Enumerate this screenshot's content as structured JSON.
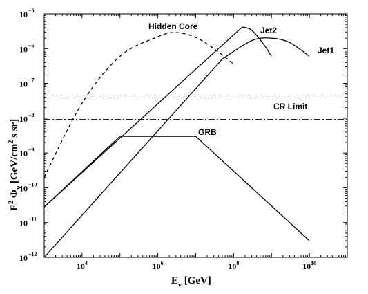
{
  "chart_data": {
    "type": "line",
    "x_scale": "log",
    "y_scale": "log",
    "xlim": [
      1000,
      100000000000.0
    ],
    "ylim": [
      1e-12,
      1e-05
    ],
    "grid": false,
    "legend": "none",
    "xlabel": {
      "main": "E",
      "sub": "ν",
      "unit": " [GeV]"
    },
    "ylabel": {
      "pre": "E",
      "pre_sup": "2",
      "phi": " Φ",
      "sub": "ν",
      "unit_a": "  [GeV/cm",
      "unit_sup": "2",
      "unit_b": " s sr]"
    },
    "x_ticks": [
      {
        "value": 10000,
        "base": "10",
        "exp": "4"
      },
      {
        "value": 1000000,
        "base": "10",
        "exp": "6"
      },
      {
        "value": 100000000,
        "base": "10",
        "exp": "8"
      },
      {
        "value": 10000000000,
        "base": "10",
        "exp": "10"
      }
    ],
    "y_ticks": [
      {
        "value": 1e-12,
        "base": "10",
        "exp": "−12"
      },
      {
        "value": 1e-11,
        "base": "10",
        "exp": "−11"
      },
      {
        "value": 1e-10,
        "base": "10",
        "exp": "−10"
      },
      {
        "value": 1e-09,
        "base": "10",
        "exp": "−9"
      },
      {
        "value": 1e-08,
        "base": "10",
        "exp": "−8"
      },
      {
        "value": 1e-07,
        "base": "10",
        "exp": "−7"
      },
      {
        "value": 1e-06,
        "base": "10",
        "exp": "−6"
      },
      {
        "value": 1e-05,
        "base": "10",
        "exp": "−5"
      }
    ],
    "series": [
      {
        "name": "Hidden Core",
        "style": "dashed",
        "x": [
          1000,
          10000,
          100000,
          1000000,
          3000000,
          10000000,
          30000000,
          100000000
        ],
        "y": [
          2e-10,
          2.7e-08,
          6e-07,
          2.2e-06,
          2.9e-06,
          2.1e-06,
          1e-06,
          3.6e-07
        ]
      },
      {
        "name": "Jet2",
        "style": "solid",
        "x": [
          1000,
          170000000,
          300000000,
          600000000,
          1000000000
        ],
        "y": [
          2.8e-11,
          4.2e-06,
          3.4e-06,
          1.4e-06,
          6e-07
        ]
      },
      {
        "name": "Jet1",
        "style": "solid",
        "x": [
          1000,
          50000000,
          300000000,
          1000000000,
          3000000000,
          10000000000
        ],
        "y": [
          1e-12,
          5e-07,
          1.7e-06,
          2e-06,
          1.5e-06,
          6e-07
        ]
      },
      {
        "name": "GRB",
        "style": "solid",
        "x": [
          1000,
          100000,
          10000000,
          10000000000
        ],
        "y": [
          2.8e-11,
          3e-09,
          3e-09,
          3e-12
        ]
      }
    ],
    "cr_limit": {
      "name": "CR Limit",
      "style": "dashdot",
      "y": [
        4.6e-08,
        9.2e-09
      ]
    }
  }
}
